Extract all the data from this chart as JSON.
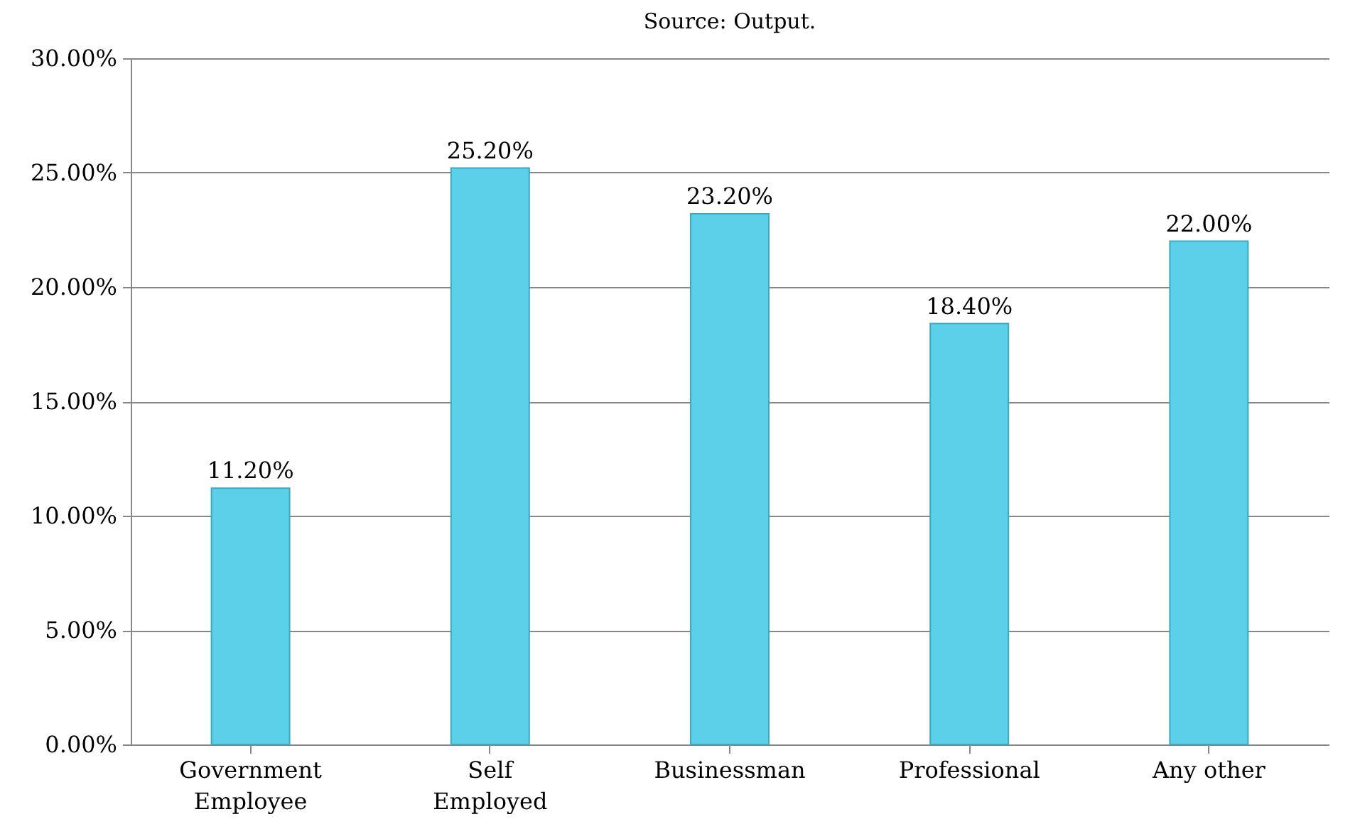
{
  "chart_data": {
    "type": "bar",
    "annotations": [
      "Source: Output."
    ],
    "categories": [
      "Government Employee",
      "Self Employed",
      "Businessman",
      "Professional",
      "Any other"
    ],
    "values": [
      11.2,
      25.2,
      23.2,
      18.4,
      22.0
    ],
    "value_labels": [
      "11.20%",
      "25.20%",
      "23.20%",
      "18.40%",
      "22.00%"
    ],
    "color": "#5cd0e8",
    "ylim": [
      0,
      30
    ],
    "yticks": [
      {
        "value": 0,
        "label": "0.00%"
      },
      {
        "value": 5,
        "label": "5.00%"
      },
      {
        "value": 10,
        "label": "10.00%"
      },
      {
        "value": 15,
        "label": "15.00%"
      },
      {
        "value": 20,
        "label": "20.00%"
      },
      {
        "value": 25,
        "label": "25.00%"
      },
      {
        "value": 30,
        "label": "30.00%"
      }
    ],
    "grid": "y"
  }
}
